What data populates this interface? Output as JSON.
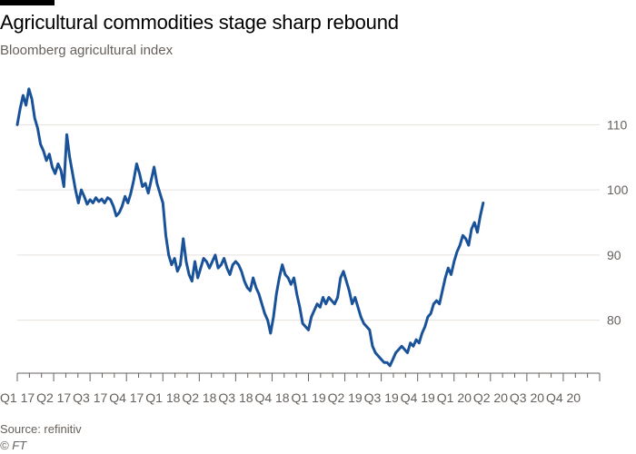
{
  "header": {
    "title": "Agricultural commodities stage sharp rebound",
    "subtitle": "Bloomberg agricultural index"
  },
  "footer": {
    "source": "Source: refinitiv",
    "copyright": "© FT"
  },
  "colors": {
    "line": "#1a5299",
    "grid": "#e6e1dc",
    "axis": "#66605c",
    "text": "#66605c"
  },
  "chart_data": {
    "type": "line",
    "title": "Agricultural commodities stage sharp rebound",
    "subtitle": "Bloomberg agricultural index",
    "xlabel": "",
    "ylabel": "",
    "ylim": [
      72,
      118
    ],
    "xlim": [
      2017.0,
      2021.0
    ],
    "grid": true,
    "y_axis_side": "right",
    "yticks": [
      80,
      90,
      100,
      110
    ],
    "x_tick_labels": [
      "Q1 17",
      "Q2 17",
      "Q3 17",
      "Q4 17",
      "Q1 18",
      "Q2 18",
      "Q3 18",
      "Q4 18",
      "Q1 19",
      "Q2 19",
      "Q3 19",
      "Q4 19",
      "Q1 20",
      "Q2 20",
      "Q3 20",
      "Q4 20"
    ],
    "series": [
      {
        "values": [
          [
            2017.0,
            110.0
          ],
          [
            2017.02,
            112.5
          ],
          [
            2017.04,
            114.5
          ],
          [
            2017.06,
            113.0
          ],
          [
            2017.08,
            115.5
          ],
          [
            2017.1,
            114.0
          ],
          [
            2017.12,
            111.0
          ],
          [
            2017.14,
            109.5
          ],
          [
            2017.16,
            107.0
          ],
          [
            2017.18,
            106.0
          ],
          [
            2017.2,
            104.5
          ],
          [
            2017.22,
            105.5
          ],
          [
            2017.24,
            103.5
          ],
          [
            2017.26,
            102.5
          ],
          [
            2017.28,
            104.0
          ],
          [
            2017.3,
            103.0
          ],
          [
            2017.32,
            100.5
          ],
          [
            2017.34,
            108.5
          ],
          [
            2017.36,
            105.0
          ],
          [
            2017.38,
            102.5
          ],
          [
            2017.4,
            100.0
          ],
          [
            2017.42,
            98.0
          ],
          [
            2017.44,
            100.0
          ],
          [
            2017.46,
            99.0
          ],
          [
            2017.48,
            97.8
          ],
          [
            2017.5,
            98.5
          ],
          [
            2017.52,
            98.0
          ],
          [
            2017.54,
            98.8
          ],
          [
            2017.56,
            98.2
          ],
          [
            2017.58,
            98.6
          ],
          [
            2017.6,
            98.0
          ],
          [
            2017.62,
            98.8
          ],
          [
            2017.64,
            98.5
          ],
          [
            2017.66,
            97.5
          ],
          [
            2017.68,
            96.0
          ],
          [
            2017.7,
            96.5
          ],
          [
            2017.72,
            97.5
          ],
          [
            2017.74,
            99.0
          ],
          [
            2017.76,
            98.0
          ],
          [
            2017.78,
            99.5
          ],
          [
            2017.8,
            101.5
          ],
          [
            2017.82,
            104.0
          ],
          [
            2017.84,
            102.5
          ],
          [
            2017.86,
            100.5
          ],
          [
            2017.88,
            101.0
          ],
          [
            2017.9,
            99.5
          ],
          [
            2017.92,
            101.5
          ],
          [
            2017.94,
            103.5
          ],
          [
            2017.96,
            101.0
          ],
          [
            2017.98,
            99.5
          ],
          [
            2018.0,
            98.0
          ],
          [
            2018.02,
            93.0
          ],
          [
            2018.04,
            90.0
          ],
          [
            2018.06,
            88.5
          ],
          [
            2018.08,
            89.5
          ],
          [
            2018.1,
            87.5
          ],
          [
            2018.12,
            88.5
          ],
          [
            2018.14,
            92.5
          ],
          [
            2018.16,
            89.0
          ],
          [
            2018.18,
            87.0
          ],
          [
            2018.2,
            86.0
          ],
          [
            2018.22,
            89.0
          ],
          [
            2018.24,
            86.5
          ],
          [
            2018.26,
            88.0
          ],
          [
            2018.28,
            89.5
          ],
          [
            2018.3,
            89.0
          ],
          [
            2018.32,
            88.0
          ],
          [
            2018.34,
            89.0
          ],
          [
            2018.36,
            90.0
          ],
          [
            2018.38,
            88.0
          ],
          [
            2018.4,
            88.5
          ],
          [
            2018.42,
            89.5
          ],
          [
            2018.44,
            88.0
          ],
          [
            2018.46,
            87.0
          ],
          [
            2018.48,
            88.5
          ],
          [
            2018.5,
            89.0
          ],
          [
            2018.52,
            88.5
          ],
          [
            2018.54,
            87.5
          ],
          [
            2018.56,
            86.0
          ],
          [
            2018.58,
            85.0
          ],
          [
            2018.6,
            84.5
          ],
          [
            2018.62,
            86.5
          ],
          [
            2018.64,
            85.0
          ],
          [
            2018.66,
            84.0
          ],
          [
            2018.68,
            82.5
          ],
          [
            2018.7,
            81.0
          ],
          [
            2018.72,
            80.0
          ],
          [
            2018.74,
            78.0
          ],
          [
            2018.76,
            80.5
          ],
          [
            2018.78,
            84.0
          ],
          [
            2018.8,
            86.5
          ],
          [
            2018.82,
            88.5
          ],
          [
            2018.84,
            87.0
          ],
          [
            2018.86,
            86.5
          ],
          [
            2018.88,
            85.5
          ],
          [
            2018.9,
            86.5
          ],
          [
            2018.92,
            84.0
          ],
          [
            2018.94,
            82.0
          ],
          [
            2018.96,
            79.5
          ],
          [
            2018.98,
            79.0
          ],
          [
            2019.0,
            78.5
          ],
          [
            2019.02,
            80.5
          ],
          [
            2019.04,
            81.5
          ],
          [
            2019.06,
            82.5
          ],
          [
            2019.08,
            82.0
          ],
          [
            2019.1,
            83.5
          ],
          [
            2019.12,
            82.5
          ],
          [
            2019.14,
            83.5
          ],
          [
            2019.16,
            83.0
          ],
          [
            2019.18,
            82.5
          ],
          [
            2019.2,
            83.5
          ],
          [
            2019.22,
            86.5
          ],
          [
            2019.24,
            87.5
          ],
          [
            2019.26,
            86.0
          ],
          [
            2019.28,
            84.5
          ],
          [
            2019.3,
            82.5
          ],
          [
            2019.32,
            83.5
          ],
          [
            2019.34,
            82.0
          ],
          [
            2019.36,
            80.5
          ],
          [
            2019.38,
            79.5
          ],
          [
            2019.4,
            79.0
          ],
          [
            2019.42,
            78.5
          ],
          [
            2019.44,
            76.0
          ],
          [
            2019.46,
            75.0
          ],
          [
            2019.48,
            74.5
          ],
          [
            2019.5,
            74.0
          ],
          [
            2019.52,
            73.5
          ],
          [
            2019.54,
            73.5
          ],
          [
            2019.56,
            73.0
          ],
          [
            2019.58,
            74.0
          ],
          [
            2019.6,
            75.0
          ],
          [
            2019.62,
            75.5
          ],
          [
            2019.64,
            76.0
          ],
          [
            2019.66,
            75.5
          ],
          [
            2019.68,
            75.0
          ],
          [
            2019.7,
            76.5
          ],
          [
            2019.72,
            76.0
          ],
          [
            2019.74,
            77.0
          ],
          [
            2019.76,
            76.5
          ],
          [
            2019.78,
            78.0
          ],
          [
            2019.8,
            79.0
          ],
          [
            2019.82,
            80.5
          ],
          [
            2019.84,
            81.0
          ],
          [
            2019.86,
            82.5
          ],
          [
            2019.88,
            83.0
          ],
          [
            2019.9,
            82.5
          ],
          [
            2019.92,
            84.5
          ],
          [
            2019.94,
            86.5
          ],
          [
            2019.96,
            88.0
          ],
          [
            2019.98,
            87.0
          ],
          [
            2020.0,
            89.0
          ],
          [
            2020.02,
            90.5
          ],
          [
            2020.04,
            91.5
          ],
          [
            2020.06,
            93.0
          ],
          [
            2020.08,
            92.5
          ],
          [
            2020.1,
            91.5
          ],
          [
            2020.12,
            94.0
          ],
          [
            2020.14,
            95.0
          ],
          [
            2020.16,
            93.5
          ],
          [
            2020.18,
            96.0
          ],
          [
            2020.2,
            98.0
          ]
        ]
      }
    ]
  }
}
